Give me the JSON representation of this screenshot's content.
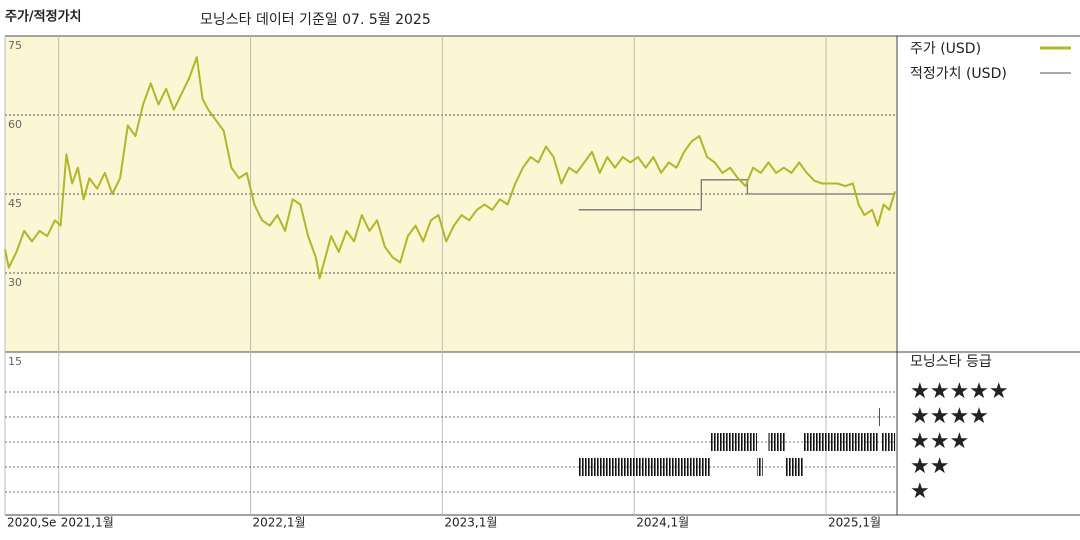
{
  "chart_data": {
    "type": "line",
    "title": "주가/적정가치",
    "subtitle": "모닝스타 데이터 기준일 07. 5월 2025",
    "xlim": [
      2020.72,
      2025.37
    ],
    "xticks": [
      {
        "value": 2020.72,
        "label": "2020,Se"
      },
      {
        "value": 2021,
        "label": "2021,1월"
      },
      {
        "value": 2022,
        "label": "2022,1월"
      },
      {
        "value": 2023,
        "label": "2023,1월"
      },
      {
        "value": 2024,
        "label": "2024,1월"
      },
      {
        "value": 2025,
        "label": "2025,1월"
      }
    ],
    "ylim": [
      15,
      75
    ],
    "yticks": [
      15,
      30,
      45,
      60,
      75
    ],
    "grid": true,
    "series": [
      {
        "name": "주가 (USD)",
        "color": "#b3b52a",
        "x": [
          2020.72,
          2020.74,
          2020.78,
          2020.82,
          2020.86,
          2020.9,
          2020.94,
          2020.98,
          2021.01,
          2021.04,
          2021.07,
          2021.1,
          2021.13,
          2021.16,
          2021.2,
          2021.24,
          2021.28,
          2021.32,
          2021.36,
          2021.4,
          2021.44,
          2021.48,
          2021.52,
          2021.56,
          2021.6,
          2021.64,
          2021.68,
          2021.72,
          2021.75,
          2021.78,
          2021.82,
          2021.86,
          2021.9,
          2021.94,
          2021.98,
          2022.02,
          2022.06,
          2022.1,
          2022.14,
          2022.18,
          2022.22,
          2022.26,
          2022.3,
          2022.34,
          2022.36,
          2022.39,
          2022.42,
          2022.46,
          2022.5,
          2022.54,
          2022.58,
          2022.62,
          2022.66,
          2022.7,
          2022.74,
          2022.78,
          2022.82,
          2022.86,
          2022.9,
          2022.94,
          2022.98,
          2023.02,
          2023.06,
          2023.1,
          2023.14,
          2023.18,
          2023.22,
          2023.26,
          2023.3,
          2023.34,
          2023.38,
          2023.42,
          2023.46,
          2023.5,
          2023.54,
          2023.58,
          2023.62,
          2023.66,
          2023.7,
          2023.74,
          2023.78,
          2023.82,
          2023.86,
          2023.9,
          2023.94,
          2023.98,
          2024.02,
          2024.06,
          2024.1,
          2024.14,
          2024.18,
          2024.22,
          2024.26,
          2024.3,
          2024.34,
          2024.38,
          2024.42,
          2024.46,
          2024.5,
          2024.54,
          2024.58,
          2024.62,
          2024.66,
          2024.7,
          2024.74,
          2024.78,
          2024.82,
          2024.86,
          2024.9,
          2024.94,
          2024.98,
          2025.02,
          2025.06,
          2025.1,
          2025.14,
          2025.17,
          2025.2,
          2025.24,
          2025.27,
          2025.3,
          2025.33,
          2025.36
        ],
        "values": [
          34.5,
          31,
          34,
          38,
          36,
          38,
          37,
          40,
          39,
          52.5,
          47,
          50,
          44,
          48,
          46,
          49,
          45,
          48,
          58,
          56,
          62,
          66,
          62,
          65,
          61,
          64,
          67,
          71,
          63,
          61,
          59,
          57,
          50,
          48,
          49,
          43,
          40,
          39,
          41,
          38,
          44,
          43,
          37,
          33,
          29,
          33,
          37,
          34,
          38,
          36,
          41,
          38,
          40,
          35,
          33,
          32,
          37,
          39,
          36,
          40,
          41,
          36,
          39,
          41,
          40,
          42,
          43,
          42,
          44,
          43,
          47,
          50,
          52,
          51,
          54,
          52,
          47,
          50,
          49,
          51,
          53,
          49,
          52,
          50,
          52,
          51,
          52,
          50,
          52,
          49,
          51,
          50,
          53,
          55,
          56,
          52,
          51,
          49,
          50,
          48,
          46.5,
          50,
          49,
          51,
          49,
          50,
          49,
          51,
          49,
          47.5,
          47,
          47,
          47,
          46.5,
          47,
          43,
          41,
          42,
          39,
          43,
          42,
          45.5
        ]
      },
      {
        "name": "적정가치 (USD)",
        "color": "#777777",
        "x": [
          2023.71,
          2024.35,
          2024.35,
          2024.59,
          2024.59,
          2025.36
        ],
        "values": [
          42,
          42,
          47.7,
          47.7,
          45,
          45
        ]
      }
    ],
    "rating": {
      "title": "모닝스타 등급",
      "levels": [
        {
          "value": 5,
          "label": "★★★★★"
        },
        {
          "value": 4,
          "label": "★★★★"
        },
        {
          "value": 3,
          "label": "★★★"
        },
        {
          "value": 2,
          "label": "★★"
        },
        {
          "value": 1,
          "label": "★"
        }
      ],
      "periods": [
        {
          "start": 2023.71,
          "end": 2024.4,
          "stars": 2
        },
        {
          "start": 2024.4,
          "end": 2024.64,
          "stars": 3
        },
        {
          "start": 2024.64,
          "end": 2024.67,
          "stars": 2
        },
        {
          "start": 2024.7,
          "end": 2024.79,
          "stars": 3
        },
        {
          "start": 2024.79,
          "end": 2024.88,
          "stars": 2
        },
        {
          "start": 2024.88,
          "end": 2025.27,
          "stars": 3
        },
        {
          "start": 2025.27,
          "end": 2025.28,
          "stars": 4
        },
        {
          "start": 2025.29,
          "end": 2025.36,
          "stars": 3
        }
      ]
    }
  }
}
